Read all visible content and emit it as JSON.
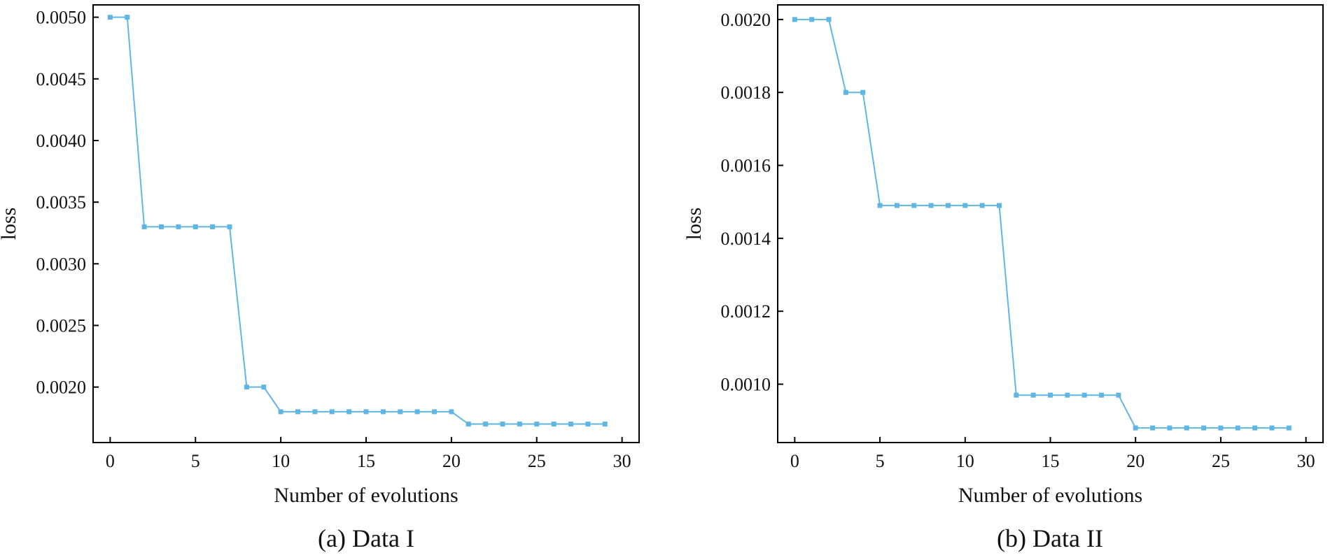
{
  "colors": {
    "series": "#5fb6e3",
    "axis": "#000000",
    "background": "#ffffff"
  },
  "chart_data": [
    {
      "type": "line",
      "caption": "(a) Data I",
      "xlabel": "Number of evolutions",
      "ylabel": "loss",
      "xlim": [
        -1,
        31
      ],
      "ylim": [
        0.00155,
        0.0051
      ],
      "xticks": [
        0,
        5,
        10,
        15,
        20,
        25,
        30
      ],
      "yticks": [
        0.002,
        0.0025,
        0.003,
        0.0035,
        0.004,
        0.0045,
        0.005
      ],
      "ytick_labels": [
        "0.0020",
        "0.0025",
        "0.0030",
        "0.0035",
        "0.0040",
        "0.0045",
        "0.0050"
      ],
      "grid": false,
      "series": [
        {
          "name": "loss",
          "x": [
            0,
            1,
            2,
            3,
            4,
            5,
            6,
            7,
            8,
            9,
            10,
            11,
            12,
            13,
            14,
            15,
            16,
            17,
            18,
            19,
            20,
            21,
            22,
            23,
            24,
            25,
            26,
            27,
            28,
            29
          ],
          "y": [
            0.005,
            0.005,
            0.0033,
            0.0033,
            0.0033,
            0.0033,
            0.0033,
            0.0033,
            0.002,
            0.002,
            0.0018,
            0.0018,
            0.0018,
            0.0018,
            0.0018,
            0.0018,
            0.0018,
            0.0018,
            0.0018,
            0.0018,
            0.0018,
            0.0017,
            0.0017,
            0.0017,
            0.0017,
            0.0017,
            0.0017,
            0.0017,
            0.0017,
            0.0017
          ]
        }
      ]
    },
    {
      "type": "line",
      "caption": "(b) Data II",
      "xlabel": "Number of evolutions",
      "ylabel": "loss",
      "xlim": [
        -1,
        31
      ],
      "ylim": [
        0.00084,
        0.00204
      ],
      "xticks": [
        0,
        5,
        10,
        15,
        20,
        25,
        30
      ],
      "yticks": [
        0.001,
        0.0012,
        0.0014,
        0.0016,
        0.0018,
        0.002
      ],
      "ytick_labels": [
        "0.0010",
        "0.0012",
        "0.0014",
        "0.0016",
        "0.0018",
        "0.0020"
      ],
      "grid": false,
      "series": [
        {
          "name": "loss",
          "x": [
            0,
            1,
            2,
            3,
            4,
            5,
            6,
            7,
            8,
            9,
            10,
            11,
            12,
            13,
            14,
            15,
            16,
            17,
            18,
            19,
            20,
            21,
            22,
            23,
            24,
            25,
            26,
            27,
            28,
            29
          ],
          "y": [
            0.002,
            0.002,
            0.002,
            0.0018,
            0.0018,
            0.00149,
            0.00149,
            0.00149,
            0.00149,
            0.00149,
            0.00149,
            0.00149,
            0.00149,
            0.00097,
            0.00097,
            0.00097,
            0.00097,
            0.00097,
            0.00097,
            0.00097,
            0.00088,
            0.00088,
            0.00088,
            0.00088,
            0.00088,
            0.00088,
            0.00088,
            0.00088,
            0.00088,
            0.00088
          ]
        }
      ]
    }
  ]
}
